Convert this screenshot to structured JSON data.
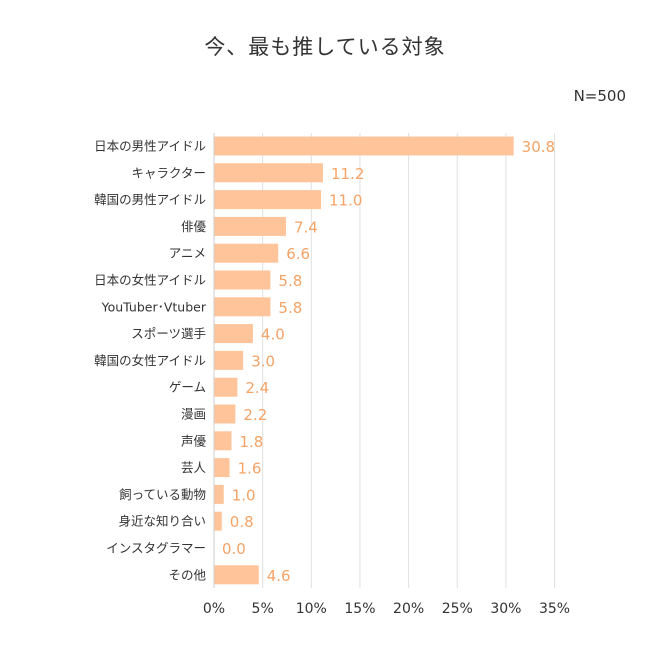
{
  "title": "今、最も推している対象",
  "sample_size": "N=500",
  "colors": {
    "bar": "#ffc49a",
    "value_label": "#f5a366",
    "grid": "#e0e0e0",
    "text": "#333333"
  },
  "chart_data": {
    "type": "bar",
    "orientation": "horizontal",
    "title": "今、最も推している対象",
    "categories": [
      "日本の男性アイドル",
      "キャラクター",
      "韓国の男性アイドル",
      "俳優",
      "アニメ",
      "日本の女性アイドル",
      "YouTuber･Vtuber",
      "スポーツ選手",
      "韓国の女性アイドル",
      "ゲーム",
      "漫画",
      "声優",
      "芸人",
      "飼っている動物",
      "身近な知り合い",
      "インスタグラマー",
      "その他"
    ],
    "values": [
      30.8,
      11.2,
      11.0,
      7.4,
      6.6,
      5.8,
      5.8,
      4.0,
      3.0,
      2.4,
      2.2,
      1.8,
      1.6,
      1.0,
      0.8,
      0.0,
      4.6
    ],
    "value_labels": [
      "30.8",
      "11.2",
      "11.0",
      "7.4",
      "6.6",
      "5.8",
      "5.8",
      "4.0",
      "3.0",
      "2.4",
      "2.2",
      "1.8",
      "1.6",
      "1.0",
      "0.8",
      "0.0",
      "4.6"
    ],
    "xticks": [
      "0%",
      "5%",
      "10%",
      "15%",
      "20%",
      "25%",
      "30%",
      "35%"
    ],
    "xlim": [
      0,
      35
    ],
    "grid": true,
    "legend": "none"
  }
}
